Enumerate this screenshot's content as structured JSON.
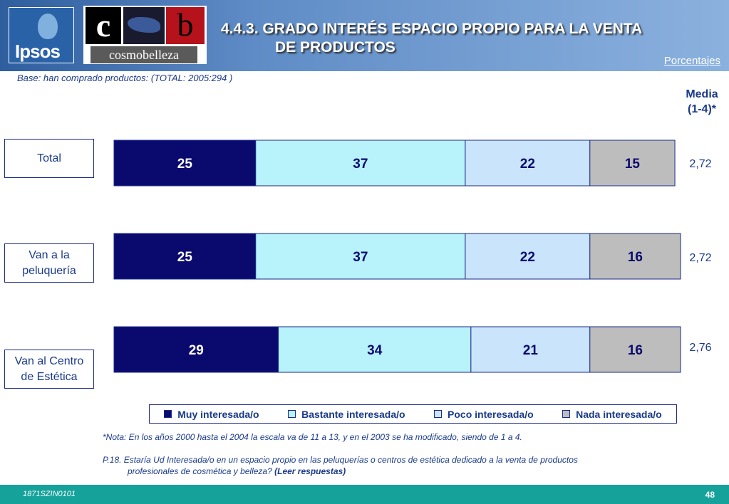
{
  "header": {
    "title_line1": "4.4.3. GRADO INTERÉS ESPACIO PROPIO PARA LA VENTA",
    "title_line2": "DE PRODUCTOS",
    "unit_link": "Porcentajes",
    "logo_ipsos": "Ipsos",
    "logo_cb_c": "c",
    "logo_cb_b": "b",
    "logo_cosmo": "cosmobelleza"
  },
  "base_text": "Base: han comprado productos: (TOTAL: 2005:294 )",
  "media_header": {
    "line1": "Media",
    "line2": "(1-4)*"
  },
  "chart_data": {
    "type": "bar",
    "orientation": "horizontal",
    "stacked": true,
    "categories": [
      "Total",
      "Van a la peluquería",
      "Van al Centro de Estética"
    ],
    "category_lines": [
      [
        "Total"
      ],
      [
        "Van a la",
        "peluquería"
      ],
      [
        "Van al Centro",
        "de Estética"
      ]
    ],
    "series": [
      {
        "name": "Muy interesada/o",
        "values": [
          25,
          25,
          29
        ],
        "color": "#0a0a6e"
      },
      {
        "name": "Bastante interesada/o",
        "values": [
          37,
          37,
          34
        ],
        "color": "#b8f2fb"
      },
      {
        "name": "Poco interesada/o",
        "values": [
          22,
          22,
          21
        ],
        "color": "#c9e4fb"
      },
      {
        "name": "Nada interesada/o",
        "values": [
          15,
          16,
          16
        ],
        "color": "#bdbdbd"
      }
    ],
    "means": [
      "2,72",
      "2,72",
      "2,76"
    ],
    "xlim": [
      0,
      100
    ],
    "legend_position": "bottom"
  },
  "footnote": "*Nota: En los años 2000 hasta el 2004 la escala va de 11 a 13, y en el 2003 se ha modificado, siendo de 1 a 4.",
  "question": {
    "line1": "P.18. Estaría Ud Interesada/o en un espacio propio en las peluquerías o centros de estética dedicado a la venta de productos",
    "line2": "profesionales de cosmética y belleza?",
    "instruction": "(Leer respuestas)"
  },
  "footer": {
    "code": "1871SZIN0101",
    "page": "48"
  }
}
